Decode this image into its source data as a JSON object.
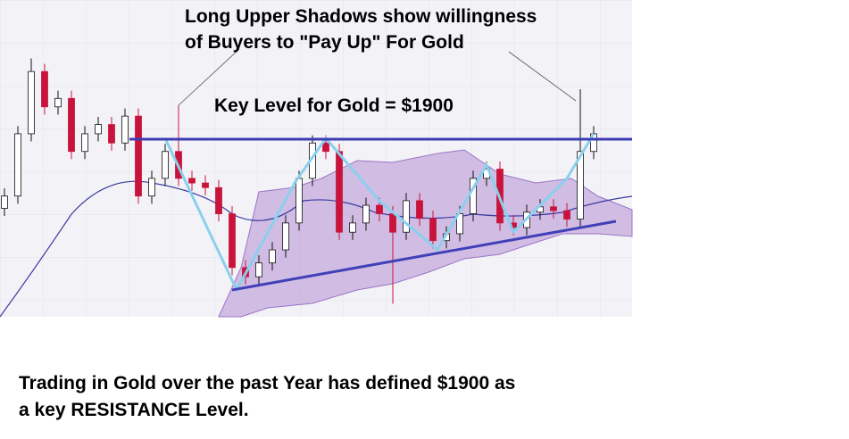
{
  "chart_data": {
    "type": "candlestick",
    "annotations": [
      "Long Upper Shadows show willingness",
      "of Buyers to \"Pay Up\" For Gold",
      "Key Level for Gold = $1900"
    ],
    "caption": [
      "Trading in Gold over the past Year has defined $1900 as",
      "a key RESISTANCE Level."
    ],
    "key_level": 1900,
    "ylim": [
      1669,
      2081
    ],
    "up_color": "#ffffff",
    "down_color": "#c8143c",
    "open": [
      1810,
      1826,
      1907,
      1988,
      1942,
      1953,
      1884,
      1907,
      1919,
      1895,
      1930,
      1826,
      1849,
      1884,
      1849,
      1843,
      1837,
      1803,
      1733,
      1721,
      1739,
      1756,
      1791,
      1849,
      1895,
      1884,
      1779,
      1791,
      1814,
      1803,
      1779,
      1820,
      1797,
      1768,
      1777,
      1803,
      1849,
      1861,
      1791,
      1785,
      1805,
      1812,
      1807,
      1796,
      1884
    ],
    "high": [
      1836,
      1917,
      2005,
      1998,
      1963,
      1963,
      1917,
      1929,
      1929,
      1940,
      1940,
      1859,
      1894,
      1944,
      1859,
      1853,
      1847,
      1813,
      1743,
      1749,
      1766,
      1801,
      1859,
      1905,
      1905,
      1894,
      1801,
      1824,
      1824,
      1813,
      1830,
      1830,
      1807,
      1787,
      1813,
      1859,
      1871,
      1871,
      1801,
      1815,
      1822,
      1822,
      1817,
      1965,
      1917
    ],
    "low": [
      1800,
      1816,
      1897,
      1932,
      1932,
      1874,
      1874,
      1897,
      1885,
      1885,
      1816,
      1816,
      1839,
      1839,
      1833,
      1827,
      1793,
      1723,
      1711,
      1711,
      1729,
      1746,
      1781,
      1839,
      1874,
      1769,
      1769,
      1781,
      1793,
      1686,
      1769,
      1787,
      1758,
      1758,
      1767,
      1793,
      1839,
      1781,
      1775,
      1775,
      1795,
      1797,
      1786,
      1786,
      1874
    ],
    "close": [
      1826,
      1907,
      1988,
      1942,
      1953,
      1884,
      1907,
      1919,
      1895,
      1930,
      1826,
      1849,
      1884,
      1849,
      1843,
      1837,
      1803,
      1733,
      1721,
      1739,
      1756,
      1791,
      1849,
      1895,
      1884,
      1779,
      1791,
      1814,
      1803,
      1779,
      1820,
      1797,
      1768,
      1777,
      1803,
      1849,
      1861,
      1791,
      1785,
      1805,
      1812,
      1807,
      1796,
      1884,
      1907
    ]
  }
}
